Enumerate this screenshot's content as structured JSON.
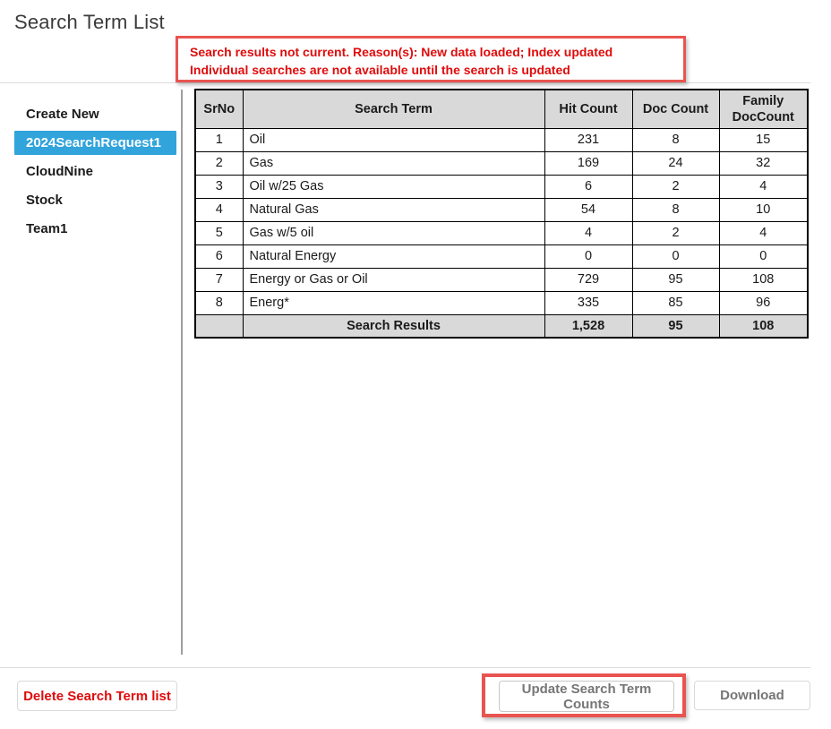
{
  "page": {
    "title": "Search Term List"
  },
  "warning": {
    "line1": "Search results not current. Reason(s): New data loaded; Index updated",
    "line2": "Individual searches are not available until the search is updated"
  },
  "sidebar": {
    "items": [
      {
        "label": "Create New",
        "selected": false
      },
      {
        "label": "2024SearchRequest1",
        "selected": true
      },
      {
        "label": "CloudNine",
        "selected": false
      },
      {
        "label": "Stock",
        "selected": false
      },
      {
        "label": "Team1",
        "selected": false
      }
    ]
  },
  "table": {
    "headers": {
      "srno": "SrNo",
      "term": "Search Term",
      "hit": "Hit Count",
      "doc": "Doc Count",
      "family": "Family DocCount"
    },
    "rows": [
      {
        "srno": "1",
        "term": "Oil",
        "hit": "231",
        "doc": "8",
        "family": "15"
      },
      {
        "srno": "2",
        "term": "Gas",
        "hit": "169",
        "doc": "24",
        "family": "32"
      },
      {
        "srno": "3",
        "term": "Oil w/25 Gas",
        "hit": "6",
        "doc": "2",
        "family": "4"
      },
      {
        "srno": "4",
        "term": "Natural Gas",
        "hit": "54",
        "doc": "8",
        "family": "10"
      },
      {
        "srno": "5",
        "term": "Gas w/5 oil",
        "hit": "4",
        "doc": "2",
        "family": "4"
      },
      {
        "srno": "6",
        "term": "Natural Energy",
        "hit": "0",
        "doc": "0",
        "family": "0"
      },
      {
        "srno": "7",
        "term": "Energy or Gas or Oil",
        "hit": "729",
        "doc": "95",
        "family": "108"
      },
      {
        "srno": "8",
        "term": "Energ*",
        "hit": "335",
        "doc": "85",
        "family": "96"
      }
    ],
    "footer": {
      "label": "Search Results",
      "hit": "1,528",
      "doc": "95",
      "family": "108"
    }
  },
  "buttons": {
    "delete": "Delete Search Term list",
    "update": "Update Search Term Counts",
    "download": "Download"
  },
  "colors": {
    "selected_item_bg": "#31a4dc",
    "warning_text": "#e00b0b",
    "annotation_border": "#e95450",
    "table_header_bg": "#d9d9d9",
    "button_text_muted": "#767676"
  }
}
